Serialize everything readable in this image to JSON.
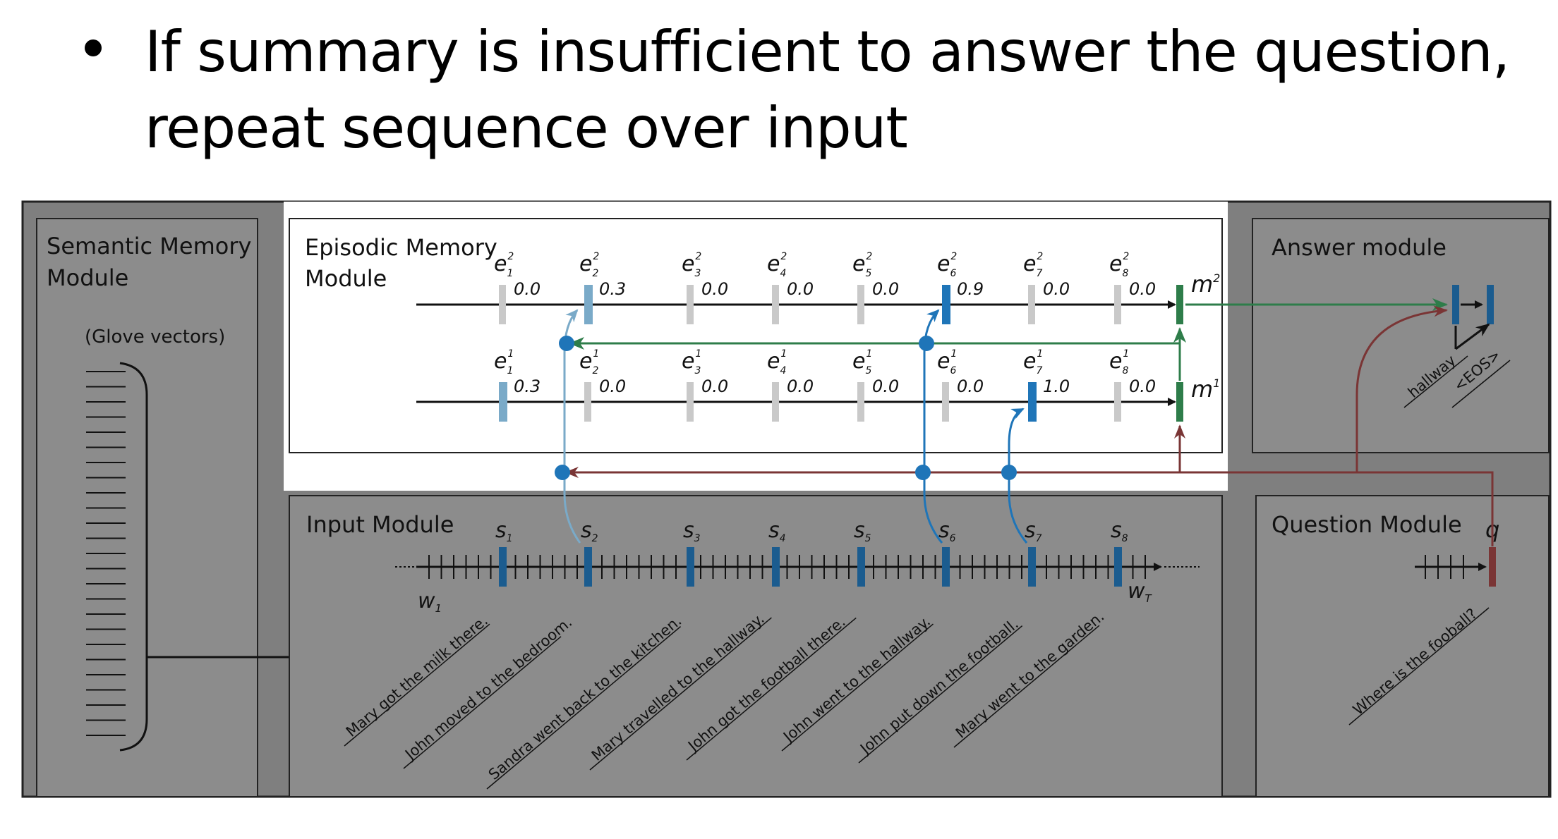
{
  "slide": {
    "bullet_lines": [
      "If summary is insufficient to answer the question,",
      "repeat sequence over input"
    ]
  },
  "modules": {
    "semantic_title": [
      "Semantic Memory",
      "Module"
    ],
    "semantic_sub": "(Glove vectors)",
    "episodic_title": [
      "Episodic Memory",
      "Module"
    ],
    "answer_title": "Answer module",
    "input_title": "Input Module",
    "question_title": "Question Module"
  },
  "episodes": {
    "e": "e",
    "pass2_values": [
      "0.0",
      "0.3",
      "0.0",
      "0.0",
      "0.0",
      "0.9",
      "0.0",
      "0.0"
    ],
    "pass1_values": [
      "0.3",
      "0.0",
      "0.0",
      "0.0",
      "0.0",
      "0.0",
      "1.0",
      "0.0"
    ],
    "indices": [
      "1",
      "2",
      "3",
      "4",
      "5",
      "6",
      "7",
      "8"
    ],
    "m": "m",
    "m2_sup": "2",
    "m1_sup": "1",
    "sup2": "2",
    "sup1": "1"
  },
  "input": {
    "s": "s",
    "w": "w",
    "w_first_sub": "1",
    "w_last_sub": "T",
    "sentences": [
      "Mary got the milk there.",
      "John moved to the bedroom.",
      "Sandra went back to the kitchen.",
      "Mary travelled to the hallway.",
      "John got the football there.",
      "John went to the hallway.",
      "John put down the football.",
      "Mary went to the garden."
    ]
  },
  "question": {
    "q": "q",
    "text": "Where is the fooball?"
  },
  "answer": {
    "words": [
      "hallway",
      "<EOS>"
    ]
  },
  "colors": {
    "panel": "#8c8c8c",
    "outer": "#7f7f7f",
    "dark_blue": "#1b5c8f",
    "light_blue": "#7aaac8",
    "bright_blue": "#1f75b8",
    "green": "#2e7d4a",
    "maroon": "#7a3535",
    "tick_gray": "#c9c9c9"
  }
}
